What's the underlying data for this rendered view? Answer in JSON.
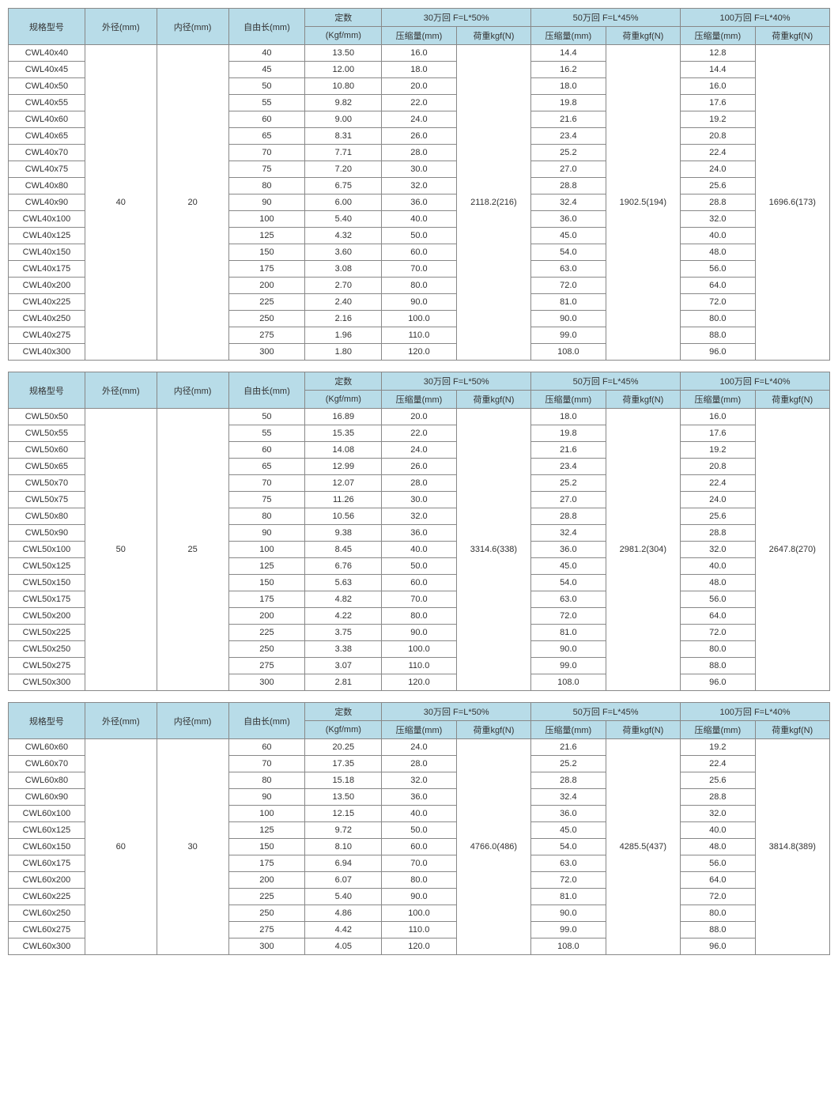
{
  "headers": {
    "model": "规格型号",
    "od": "外径(mm)",
    "id": "内径(mm)",
    "len": "自由长(mm)",
    "k_top": "定数",
    "k_bot": "(Kgf/mm)",
    "g30": "30万回  F=L*50%",
    "g50": "50万回 F=L*45%",
    "g100": "100万回  F=L*40%",
    "comp": "压缩量(mm)",
    "load": "荷重kgf(N)"
  },
  "tables": [
    {
      "od": "40",
      "id": "20",
      "load30": "2118.2(216)",
      "load50": "1902.5(194)",
      "load100": "1696.6(173)",
      "rows": [
        {
          "model": "CWL40x40",
          "len": "40",
          "k": "13.50",
          "c30": "16.0",
          "c50": "14.4",
          "c100": "12.8"
        },
        {
          "model": "CWL40x45",
          "len": "45",
          "k": "12.00",
          "c30": "18.0",
          "c50": "16.2",
          "c100": "14.4"
        },
        {
          "model": "CWL40x50",
          "len": "50",
          "k": "10.80",
          "c30": "20.0",
          "c50": "18.0",
          "c100": "16.0"
        },
        {
          "model": "CWL40x55",
          "len": "55",
          "k": "9.82",
          "c30": "22.0",
          "c50": "19.8",
          "c100": "17.6"
        },
        {
          "model": "CWL40x60",
          "len": "60",
          "k": "9.00",
          "c30": "24.0",
          "c50": "21.6",
          "c100": "19.2"
        },
        {
          "model": "CWL40x65",
          "len": "65",
          "k": "8.31",
          "c30": "26.0",
          "c50": "23.4",
          "c100": "20.8"
        },
        {
          "model": "CWL40x70",
          "len": "70",
          "k": "7.71",
          "c30": "28.0",
          "c50": "25.2",
          "c100": "22.4"
        },
        {
          "model": "CWL40x75",
          "len": "75",
          "k": "7.20",
          "c30": "30.0",
          "c50": "27.0",
          "c100": "24.0"
        },
        {
          "model": "CWL40x80",
          "len": "80",
          "k": "6.75",
          "c30": "32.0",
          "c50": "28.8",
          "c100": "25.6"
        },
        {
          "model": "CWL40x90",
          "len": "90",
          "k": "6.00",
          "c30": "36.0",
          "c50": "32.4",
          "c100": "28.8"
        },
        {
          "model": "CWL40x100",
          "len": "100",
          "k": "5.40",
          "c30": "40.0",
          "c50": "36.0",
          "c100": "32.0"
        },
        {
          "model": "CWL40x125",
          "len": "125",
          "k": "4.32",
          "c30": "50.0",
          "c50": "45.0",
          "c100": "40.0"
        },
        {
          "model": "CWL40x150",
          "len": "150",
          "k": "3.60",
          "c30": "60.0",
          "c50": "54.0",
          "c100": "48.0"
        },
        {
          "model": "CWL40x175",
          "len": "175",
          "k": "3.08",
          "c30": "70.0",
          "c50": "63.0",
          "c100": "56.0"
        },
        {
          "model": "CWL40x200",
          "len": "200",
          "k": "2.70",
          "c30": "80.0",
          "c50": "72.0",
          "c100": "64.0"
        },
        {
          "model": "CWL40x225",
          "len": "225",
          "k": "2.40",
          "c30": "90.0",
          "c50": "81.0",
          "c100": "72.0"
        },
        {
          "model": "CWL40x250",
          "len": "250",
          "k": "2.16",
          "c30": "100.0",
          "c50": "90.0",
          "c100": "80.0"
        },
        {
          "model": "CWL40x275",
          "len": "275",
          "k": "1.96",
          "c30": "110.0",
          "c50": "99.0",
          "c100": "88.0"
        },
        {
          "model": "CWL40x300",
          "len": "300",
          "k": "1.80",
          "c30": "120.0",
          "c50": "108.0",
          "c100": "96.0"
        }
      ]
    },
    {
      "od": "50",
      "id": "25",
      "load30": "3314.6(338)",
      "load50": "2981.2(304)",
      "load100": "2647.8(270)",
      "rows": [
        {
          "model": "CWL50x50",
          "len": "50",
          "k": "16.89",
          "c30": "20.0",
          "c50": "18.0",
          "c100": "16.0"
        },
        {
          "model": "CWL50x55",
          "len": "55",
          "k": "15.35",
          "c30": "22.0",
          "c50": "19.8",
          "c100": "17.6"
        },
        {
          "model": "CWL50x60",
          "len": "60",
          "k": "14.08",
          "c30": "24.0",
          "c50": "21.6",
          "c100": "19.2"
        },
        {
          "model": "CWL50x65",
          "len": "65",
          "k": "12.99",
          "c30": "26.0",
          "c50": "23.4",
          "c100": "20.8"
        },
        {
          "model": "CWL50x70",
          "len": "70",
          "k": "12.07",
          "c30": "28.0",
          "c50": "25.2",
          "c100": "22.4"
        },
        {
          "model": "CWL50x75",
          "len": "75",
          "k": "11.26",
          "c30": "30.0",
          "c50": "27.0",
          "c100": "24.0"
        },
        {
          "model": "CWL50x80",
          "len": "80",
          "k": "10.56",
          "c30": "32.0",
          "c50": "28.8",
          "c100": "25.6"
        },
        {
          "model": "CWL50x90",
          "len": "90",
          "k": "9.38",
          "c30": "36.0",
          "c50": "32.4",
          "c100": "28.8"
        },
        {
          "model": "CWL50x100",
          "len": "100",
          "k": "8.45",
          "c30": "40.0",
          "c50": "36.0",
          "c100": "32.0"
        },
        {
          "model": "CWL50x125",
          "len": "125",
          "k": "6.76",
          "c30": "50.0",
          "c50": "45.0",
          "c100": "40.0"
        },
        {
          "model": "CWL50x150",
          "len": "150",
          "k": "5.63",
          "c30": "60.0",
          "c50": "54.0",
          "c100": "48.0"
        },
        {
          "model": "CWL50x175",
          "len": "175",
          "k": "4.82",
          "c30": "70.0",
          "c50": "63.0",
          "c100": "56.0"
        },
        {
          "model": "CWL50x200",
          "len": "200",
          "k": "4.22",
          "c30": "80.0",
          "c50": "72.0",
          "c100": "64.0"
        },
        {
          "model": "CWL50x225",
          "len": "225",
          "k": "3.75",
          "c30": "90.0",
          "c50": "81.0",
          "c100": "72.0"
        },
        {
          "model": "CWL50x250",
          "len": "250",
          "k": "3.38",
          "c30": "100.0",
          "c50": "90.0",
          "c100": "80.0"
        },
        {
          "model": "CWL50x275",
          "len": "275",
          "k": "3.07",
          "c30": "110.0",
          "c50": "99.0",
          "c100": "88.0"
        },
        {
          "model": "CWL50x300",
          "len": "300",
          "k": "2.81",
          "c30": "120.0",
          "c50": "108.0",
          "c100": "96.0"
        }
      ]
    },
    {
      "od": "60",
      "id": "30",
      "load30": "4766.0(486)",
      "load50": "4285.5(437)",
      "load100": "3814.8(389)",
      "rows": [
        {
          "model": "CWL60x60",
          "len": "60",
          "k": "20.25",
          "c30": "24.0",
          "c50": "21.6",
          "c100": "19.2"
        },
        {
          "model": "CWL60x70",
          "len": "70",
          "k": "17.35",
          "c30": "28.0",
          "c50": "25.2",
          "c100": "22.4"
        },
        {
          "model": "CWL60x80",
          "len": "80",
          "k": "15.18",
          "c30": "32.0",
          "c50": "28.8",
          "c100": "25.6"
        },
        {
          "model": "CWL60x90",
          "len": "90",
          "k": "13.50",
          "c30": "36.0",
          "c50": "32.4",
          "c100": "28.8"
        },
        {
          "model": "CWL60x100",
          "len": "100",
          "k": "12.15",
          "c30": "40.0",
          "c50": "36.0",
          "c100": "32.0"
        },
        {
          "model": "CWL60x125",
          "len": "125",
          "k": "9.72",
          "c30": "50.0",
          "c50": "45.0",
          "c100": "40.0"
        },
        {
          "model": "CWL60x150",
          "len": "150",
          "k": "8.10",
          "c30": "60.0",
          "c50": "54.0",
          "c100": "48.0"
        },
        {
          "model": "CWL60x175",
          "len": "175",
          "k": "6.94",
          "c30": "70.0",
          "c50": "63.0",
          "c100": "56.0"
        },
        {
          "model": "CWL60x200",
          "len": "200",
          "k": "6.07",
          "c30": "80.0",
          "c50": "72.0",
          "c100": "64.0"
        },
        {
          "model": "CWL60x225",
          "len": "225",
          "k": "5.40",
          "c30": "90.0",
          "c50": "81.0",
          "c100": "72.0"
        },
        {
          "model": "CWL60x250",
          "len": "250",
          "k": "4.86",
          "c30": "100.0",
          "c50": "90.0",
          "c100": "80.0"
        },
        {
          "model": "CWL60x275",
          "len": "275",
          "k": "4.42",
          "c30": "110.0",
          "c50": "99.0",
          "c100": "88.0"
        },
        {
          "model": "CWL60x300",
          "len": "300",
          "k": "4.05",
          "c30": "120.0",
          "c50": "108.0",
          "c100": "96.0"
        }
      ]
    }
  ]
}
